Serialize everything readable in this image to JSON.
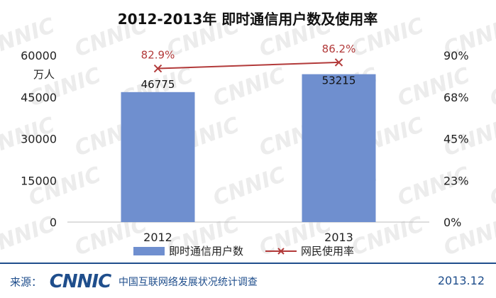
{
  "chart_data": {
    "type": "bar",
    "title": "2012-2013年 即时通信用户数及使用率",
    "categories": [
      "2012",
      "2013"
    ],
    "series": [
      {
        "name": "即时通信用户数",
        "type": "bar",
        "axis": "left",
        "values": [
          46775,
          53215
        ],
        "labels": [
          "46775",
          "53215"
        ]
      },
      {
        "name": "网民使用率",
        "type": "line",
        "axis": "right",
        "values": [
          82.9,
          86.2
        ],
        "labels": [
          "82.9%",
          "86.2%"
        ]
      }
    ],
    "y_left": {
      "label": "万人",
      "min": 0,
      "max": 60000,
      "ticks": [
        "0",
        "15000",
        "30000",
        "45000",
        "60000"
      ]
    },
    "y_right": {
      "min": 0,
      "max": 90,
      "ticks": [
        "0%",
        "23%",
        "45%",
        "68%",
        "90%"
      ]
    },
    "legend_position": "bottom",
    "colors": {
      "bar": "#6f8fcf",
      "line": "#b23a3a",
      "title": "#111111",
      "footer": "#1f4e8c"
    }
  },
  "watermark": "CNNIC",
  "footer": {
    "source_label": "来源：",
    "logo_text": "CNNIC",
    "org_name": "中国互联网络发展状况统计调查",
    "date": "2013.12"
  }
}
